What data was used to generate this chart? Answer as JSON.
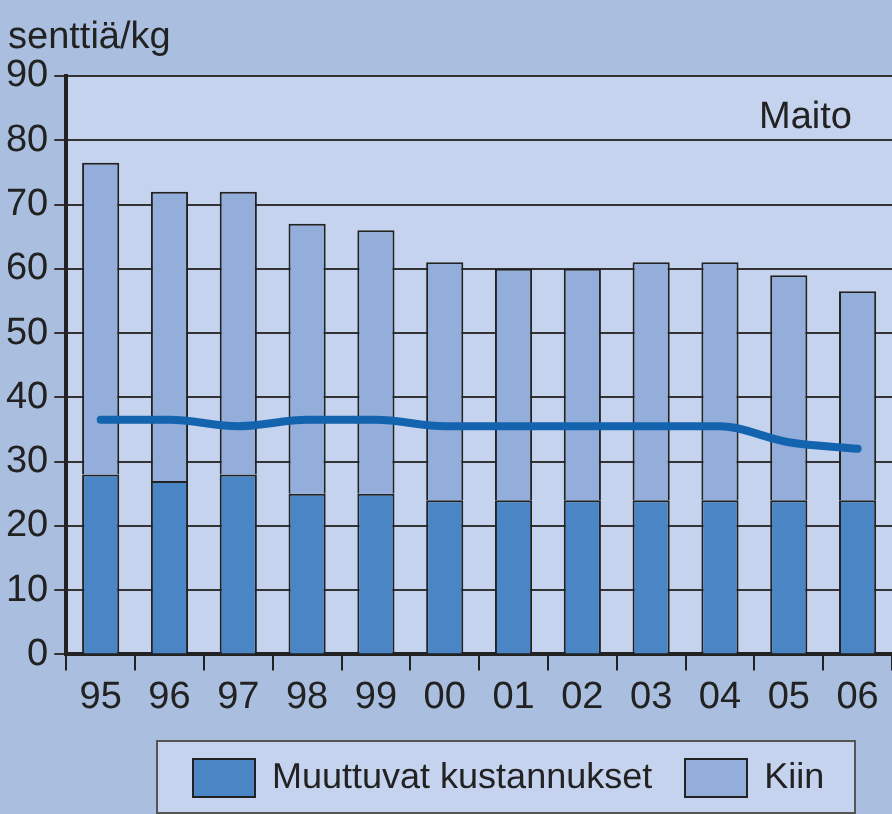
{
  "chart_data": {
    "type": "bar",
    "title": "Maito",
    "ylabel": "senttiä/kg",
    "stacked": true,
    "categories": [
      "95",
      "96",
      "97",
      "98",
      "99",
      "00",
      "01",
      "02",
      "03",
      "04",
      "05",
      "06"
    ],
    "series": [
      {
        "name": "Muuttuvat kustannukset",
        "color": "#4a86c5",
        "values": [
          28,
          27,
          28,
          25,
          25,
          24,
          24,
          24,
          24,
          24,
          24,
          24
        ]
      },
      {
        "name": "Kiin",
        "color": "#93aedb",
        "values": [
          48.5,
          45,
          44,
          42,
          41,
          37,
          36,
          36,
          37,
          37,
          35,
          32.5
        ]
      },
      {
        "type": "line",
        "color": "#1363ae",
        "values": [
          36.5,
          36.5,
          35.5,
          36.5,
          36.5,
          35.5,
          35.5,
          35.5,
          35.5,
          35.5,
          33,
          32
        ]
      }
    ],
    "ylim": [
      0,
      90
    ],
    "yticks": [
      0,
      10,
      20,
      30,
      40,
      50,
      60,
      70,
      80,
      90
    ],
    "grid": "y",
    "legend": "bottom",
    "marker": "none"
  }
}
